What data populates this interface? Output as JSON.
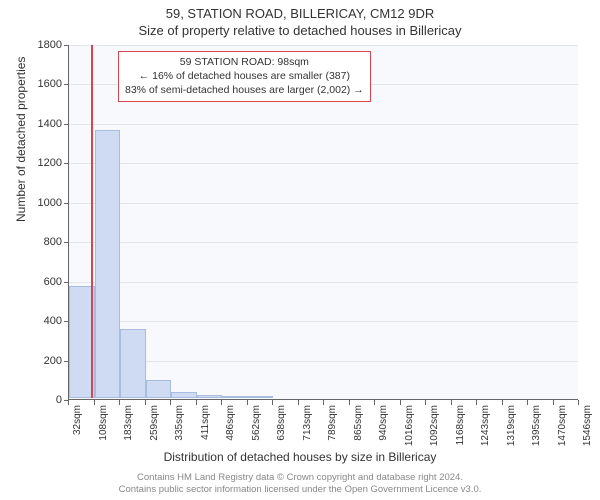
{
  "header": {
    "address": "59, STATION ROAD, BILLERICAY, CM12 9DR",
    "subtitle": "Size of property relative to detached houses in Billericay"
  },
  "chart": {
    "type": "histogram",
    "background_color": "#f7f9fc",
    "grid_color": "#e2e6ec",
    "axis_color": "#666666",
    "bar_fill": "#cfdbf2",
    "bar_border": "#a8bce0",
    "marker_color": "#d64550",
    "ylim": [
      0,
      1800
    ],
    "ytick_step": 200,
    "yticks": [
      0,
      200,
      400,
      600,
      800,
      1000,
      1200,
      1400,
      1600,
      1800
    ],
    "x_bin_start": 32,
    "x_bin_width": 75.7,
    "x_tick_count": 21,
    "x_tick_labels": [
      "32sqm",
      "108sqm",
      "183sqm",
      "259sqm",
      "335sqm",
      "411sqm",
      "486sqm",
      "562sqm",
      "638sqm",
      "713sqm",
      "789sqm",
      "865sqm",
      "940sqm",
      "1016sqm",
      "1092sqm",
      "1168sqm",
      "1243sqm",
      "1319sqm",
      "1395sqm",
      "1470sqm",
      "1546sqm"
    ],
    "bar_values": [
      570,
      1360,
      350,
      90,
      30,
      15,
      10,
      10,
      0,
      0,
      0,
      0,
      0,
      0,
      0,
      0,
      0,
      0,
      0,
      0
    ],
    "marker_value_sqm": 98,
    "y_axis_title": "Number of detached properties",
    "x_axis_title": "Distribution of detached houses by size in Billericay",
    "title_fontsize": 13,
    "label_fontsize": 12,
    "tick_fontsize": 11
  },
  "annotation": {
    "line1": "59 STATION ROAD: 98sqm",
    "line2": "← 16% of detached houses are smaller (387)",
    "line3": "83% of semi-detached houses are larger (2,002) →",
    "border_color": "#d64550",
    "background_color": "#ffffff",
    "fontsize": 10.5
  },
  "footer": {
    "line1": "Contains HM Land Registry data © Crown copyright and database right 2024.",
    "line2": "Contains public sector information licensed under the Open Government Licence v3.0."
  }
}
